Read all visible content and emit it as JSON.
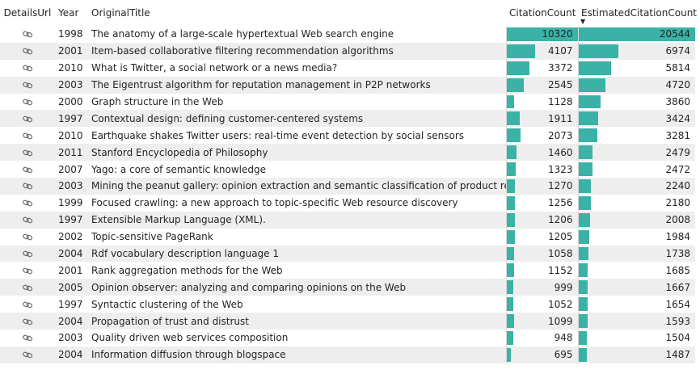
{
  "columns": {
    "details": "DetailsUrl",
    "year": "Year",
    "title": "OriginalTitle",
    "citation": "CitationCount",
    "estimated": "EstimatedCitationCount"
  },
  "sort": {
    "column": "EstimatedCitationCount",
    "direction": "descending"
  },
  "colors": {
    "bar": "#3ab2a7",
    "stripe": "#eeeeee"
  },
  "icons": {
    "details": "link-icon"
  },
  "rows": [
    {
      "year": "1998",
      "title": "The anatomy of a large-scale hypertextual Web search engine",
      "citation": "10320",
      "estimated": "20544"
    },
    {
      "year": "2001",
      "title": "Item-based collaborative filtering recommendation algorithms",
      "citation": "4107",
      "estimated": "6974"
    },
    {
      "year": "2010",
      "title": "What is Twitter, a social network or a news media?",
      "citation": "3372",
      "estimated": "5814"
    },
    {
      "year": "2003",
      "title": "The Eigentrust algorithm for reputation management in P2P networks",
      "citation": "2545",
      "estimated": "4720"
    },
    {
      "year": "2000",
      "title": "Graph structure in the Web",
      "citation": "1128",
      "estimated": "3860"
    },
    {
      "year": "1997",
      "title": "Contextual design: defining customer-centered systems",
      "citation": "1911",
      "estimated": "3424"
    },
    {
      "year": "2010",
      "title": "Earthquake shakes Twitter users: real-time event detection by social sensors",
      "citation": "2073",
      "estimated": "3281"
    },
    {
      "year": "2011",
      "title": "Stanford Encyclopedia of Philosophy",
      "citation": "1460",
      "estimated": "2479"
    },
    {
      "year": "2007",
      "title": "Yago: a core of semantic knowledge",
      "citation": "1323",
      "estimated": "2472"
    },
    {
      "year": "2003",
      "title": "Mining the peanut gallery: opinion extraction and semantic classification of product reviews",
      "citation": "1270",
      "estimated": "2240"
    },
    {
      "year": "1999",
      "title": "Focused crawling: a new approach to topic-specific Web resource discovery",
      "citation": "1256",
      "estimated": "2180"
    },
    {
      "year": "1997",
      "title": "Extensible Markup Language (XML).",
      "citation": "1206",
      "estimated": "2008"
    },
    {
      "year": "2002",
      "title": "Topic-sensitive PageRank",
      "citation": "1205",
      "estimated": "1984"
    },
    {
      "year": "2004",
      "title": "Rdf vocabulary description language 1",
      "citation": "1058",
      "estimated": "1738"
    },
    {
      "year": "2001",
      "title": "Rank aggregation methods for the Web",
      "citation": "1152",
      "estimated": "1685"
    },
    {
      "year": "2005",
      "title": "Opinion observer: analyzing and comparing opinions on the Web",
      "citation": "999",
      "estimated": "1667"
    },
    {
      "year": "1997",
      "title": "Syntactic clustering of the Web",
      "citation": "1052",
      "estimated": "1654"
    },
    {
      "year": "2004",
      "title": "Propagation of trust and distrust",
      "citation": "1099",
      "estimated": "1593"
    },
    {
      "year": "2003",
      "title": "Quality driven web services composition",
      "citation": "948",
      "estimated": "1504"
    },
    {
      "year": "2004",
      "title": "Information diffusion through blogspace",
      "citation": "695",
      "estimated": "1487"
    }
  ]
}
